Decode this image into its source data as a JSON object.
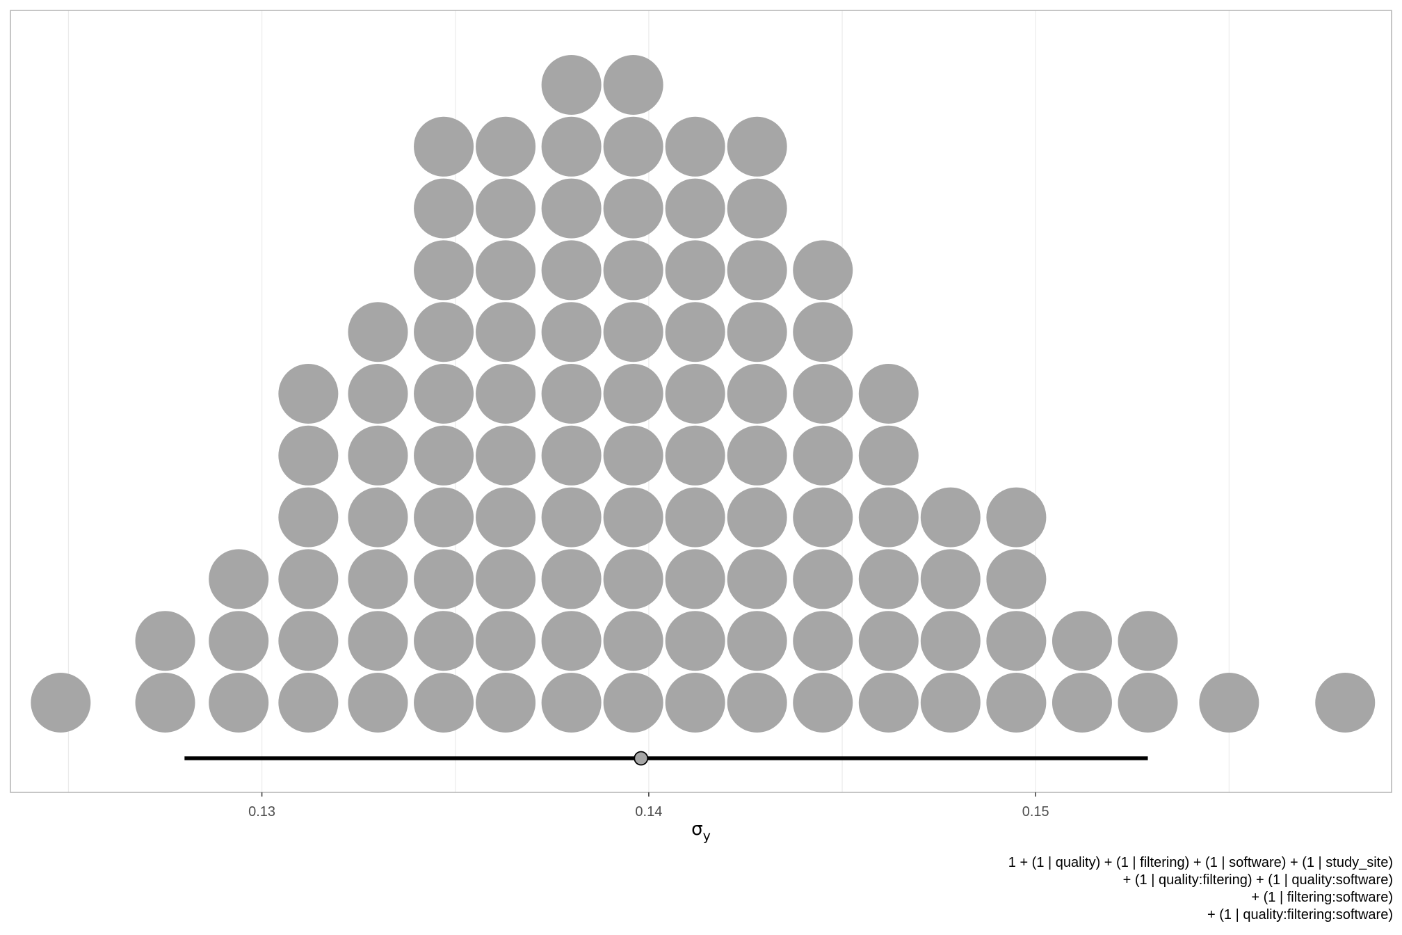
{
  "chart_data": {
    "type": "dotplot",
    "xlabel": "σ",
    "xlabel_subscript": "y",
    "xlim": [
      0.1235,
      0.1592
    ],
    "x_ticks": [
      0.13,
      0.14,
      0.15
    ],
    "x_tick_labels": [
      "0.13",
      "0.14",
      "0.15"
    ],
    "grid": true,
    "dot_color": "#a6a6a6",
    "columns": [
      {
        "x": 0.1248,
        "count": 1
      },
      {
        "x": 0.1275,
        "count": 2
      },
      {
        "x": 0.1294,
        "count": 3
      },
      {
        "x": 0.1312,
        "count": 6
      },
      {
        "x": 0.133,
        "count": 7
      },
      {
        "x": 0.1347,
        "count": 10
      },
      {
        "x": 0.1363,
        "count": 10
      },
      {
        "x": 0.138,
        "count": 11
      },
      {
        "x": 0.1396,
        "count": 11
      },
      {
        "x": 0.1412,
        "count": 10
      },
      {
        "x": 0.1428,
        "count": 10
      },
      {
        "x": 0.1445,
        "count": 8
      },
      {
        "x": 0.1462,
        "count": 6
      },
      {
        "x": 0.1478,
        "count": 4
      },
      {
        "x": 0.1495,
        "count": 4
      },
      {
        "x": 0.1512,
        "count": 2
      },
      {
        "x": 0.1529,
        "count": 2
      },
      {
        "x": 0.155,
        "count": 1
      },
      {
        "x": 0.158,
        "count": 1
      }
    ],
    "interval": {
      "low": 0.128,
      "high": 0.1529,
      "point": 0.1398
    }
  },
  "caption": [
    "1 + (1 | quality) + (1 | filtering) + (1 | software) + (1 | study_site)",
    "+ (1 | quality:filtering) + (1 | quality:software)",
    "+ (1 | filtering:software)",
    "+ (1 | quality:filtering:software)"
  ]
}
